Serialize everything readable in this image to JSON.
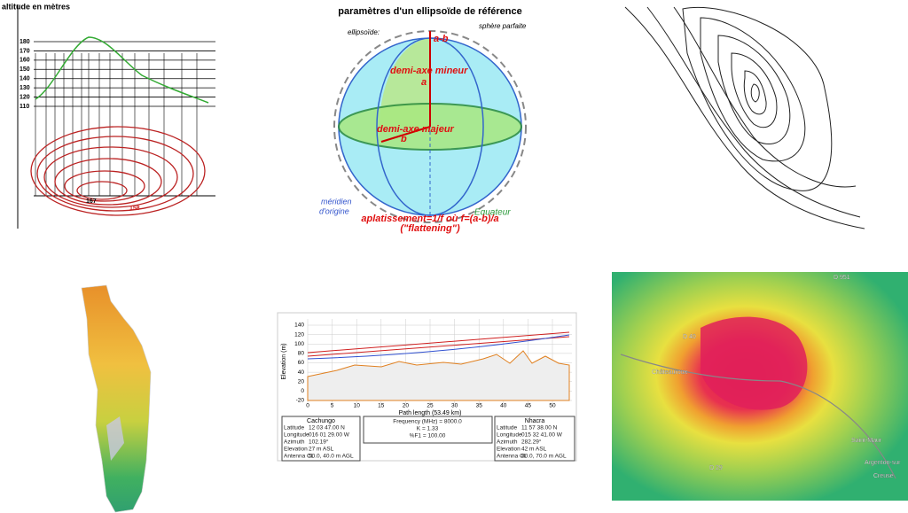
{
  "altitude_profile": {
    "title": "altitude en mètres",
    "yticks": [
      180,
      170,
      160,
      150,
      140,
      130,
      120,
      110
    ],
    "contour_labels": [
      "167",
      "158"
    ]
  },
  "ellipsoid": {
    "title": "paramètres d'un ellipsoïde de référence",
    "ellipsoid_label": "ellipsoïde:",
    "sphere_label": "sphère parfaite",
    "difference_label": "a-b",
    "minor_axis": "demi-axe mineur",
    "minor_symbol": "a",
    "major_axis": "demi-axe majeur",
    "major_symbol": "b",
    "meridian": "méridien",
    "meridian_origin": "d'origine",
    "equator": "Equateur",
    "flattening": "aplatissement=1/f où f=(a-b)/a",
    "flattening_en": "(\"flattening\")"
  },
  "path_profile": {
    "y_axis_label": "Elevation (m)",
    "x_axis_label": "Path length (53.49 km)",
    "yticks": [
      140,
      120,
      100,
      80,
      60,
      40,
      20,
      0,
      -20
    ],
    "xticks": [
      0,
      5,
      10,
      15,
      20,
      25,
      30,
      35,
      40,
      45,
      50
    ],
    "site_a": {
      "name": "Cachungo",
      "rows": [
        [
          "Latitude",
          "12 03 47.00 N"
        ],
        [
          "Longitude",
          "016 01 29.00 W"
        ],
        [
          "Azimuth",
          "102.19°"
        ],
        [
          "Elevation",
          "27 m ASL"
        ],
        [
          "Antenna CL",
          "50.0, 40.0 m AGL"
        ]
      ]
    },
    "center": [
      "Frequency (MHz) = 8000.0",
      "K = 1.33",
      "%F1 = 100.00"
    ],
    "site_b": {
      "name": "Nhacra",
      "rows": [
        [
          "Latitude",
          "11 57 38.00 N"
        ],
        [
          "Longitude",
          "015 32 41.00 W"
        ],
        [
          "Azimuth",
          "282.29°"
        ],
        [
          "Elevation",
          "42 m ASL"
        ],
        [
          "Antenna CL",
          "80.0, 70.0 m AGL"
        ]
      ]
    }
  },
  "map_labels": [
    "D 951",
    "D 40",
    "Châteauroux",
    "Saint-Maur",
    "Argenton-sur",
    "Creuse",
    "D 29"
  ]
}
